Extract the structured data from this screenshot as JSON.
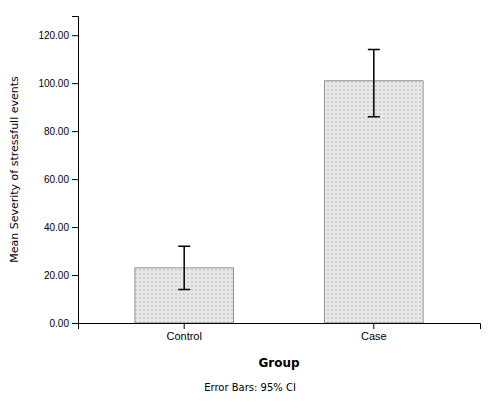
{
  "chart_data": {
    "type": "bar",
    "categories": [
      "Control",
      "Case"
    ],
    "values": [
      23.0,
      101.0
    ],
    "error_lower": [
      9.0,
      15.0
    ],
    "error_upper": [
      9.0,
      13.0
    ],
    "color": "#e8e8e8",
    "xlabel": "Group",
    "ylabel": "Mean Severity of stressfull events",
    "footer": "Error Bars: 95% CI",
    "ylim": [
      0,
      128
    ],
    "yticks": [
      {
        "value": 0.0,
        "label": "0.00"
      },
      {
        "value": 20.0,
        "label": "20.00"
      },
      {
        "value": 40.0,
        "label": "40.00"
      },
      {
        "value": 60.0,
        "label": "60.00"
      },
      {
        "value": 80.0,
        "label": "80.00"
      },
      {
        "value": 100.0,
        "label": "100.00"
      },
      {
        "value": 120.0,
        "label": "120.00"
      }
    ],
    "grid": false
  }
}
